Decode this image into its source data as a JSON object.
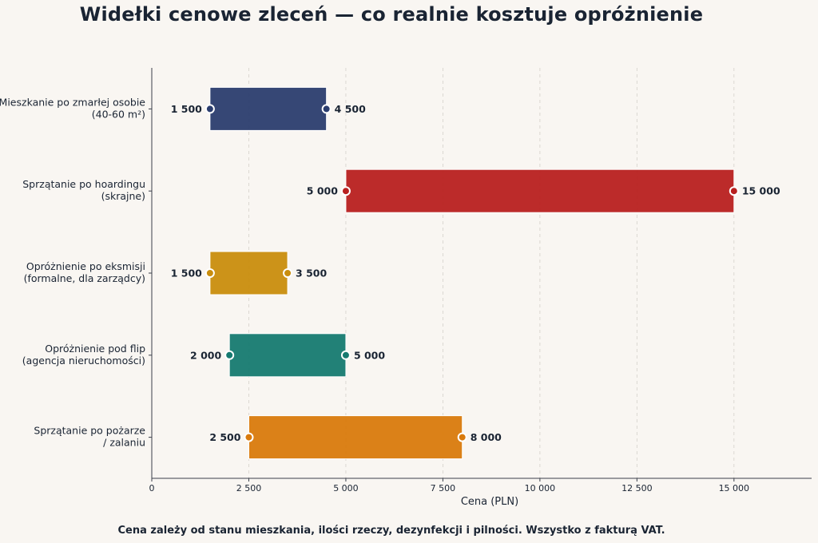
{
  "title": "Widełki cenowe zleceń — co realnie kosztuje opróżnienie",
  "footnote": "Cena zależy od stanu mieszkania, ilości rzeczy, dezynfekcji i pilności. Wszystko z fakturą VAT.",
  "chart_data": {
    "type": "bar",
    "orientation": "horizontal-range",
    "xlabel": "Cena (PLN)",
    "ylabel": "",
    "xlim": [
      0,
      17000
    ],
    "xticks": [
      0,
      2500,
      5000,
      7500,
      10000,
      12500,
      15000
    ],
    "xtick_labels": [
      "0",
      "2 500",
      "5 000",
      "7 500",
      "10 000",
      "12 500",
      "15 000"
    ],
    "grid": "vertical dashed",
    "categories": [
      {
        "lines": [
          "Mieszkanie po zmarłej osobie",
          "(40-60 m²)"
        ],
        "min": 1500,
        "max": 4500,
        "min_label": "1 500",
        "max_label": "4 500",
        "color": "#2b3d6e"
      },
      {
        "lines": [
          "Sprzątanie po hoardingu",
          "(skrajne)"
        ],
        "min": 5000,
        "max": 15000,
        "min_label": "5 000",
        "max_label": "15 000",
        "color": "#b8201f"
      },
      {
        "lines": [
          "Opróżnienie po eksmisji",
          "(formalne, dla zarządcy)"
        ],
        "min": 1500,
        "max": 3500,
        "min_label": "1 500",
        "max_label": "3 500",
        "color": "#c98d0d"
      },
      {
        "lines": [
          "Opróżnienie pod flip",
          "(agencja nieruchomości)"
        ],
        "min": 2000,
        "max": 5000,
        "min_label": "2 000",
        "max_label": "5 000",
        "color": "#167a70"
      },
      {
        "lines": [
          "Sprzątanie po pożarze",
          "/ zalaniu"
        ],
        "min": 2500,
        "max": 8000,
        "min_label": "2 500",
        "max_label": "8 000",
        "color": "#d97a0c"
      }
    ]
  }
}
